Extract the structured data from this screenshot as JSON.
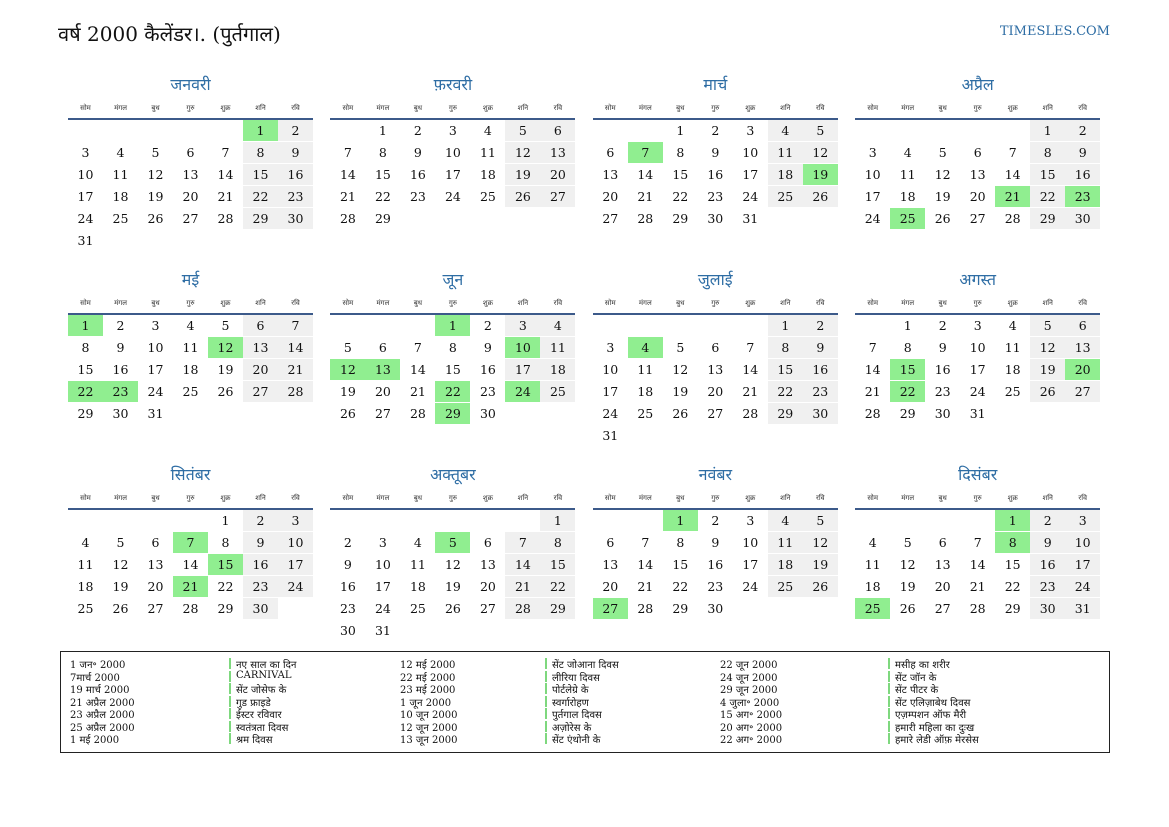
{
  "header": {
    "title": "वर्ष 2000 कैलेंडर।. (पुर्तगाल)",
    "site": "TIMESLES.COM"
  },
  "weekdays": [
    "सोम",
    "मंगल",
    "बुध",
    "गुरु",
    "शुक्र",
    "शनि",
    "रवि"
  ],
  "months": [
    {
      "name": "जनवरी",
      "weeks": [
        [
          null,
          null,
          null,
          null,
          null,
          1,
          2
        ],
        [
          3,
          4,
          5,
          6,
          7,
          8,
          9
        ],
        [
          10,
          11,
          12,
          13,
          14,
          15,
          16
        ],
        [
          17,
          18,
          19,
          20,
          21,
          22,
          23
        ],
        [
          24,
          25,
          26,
          27,
          28,
          29,
          30
        ],
        [
          31
        ]
      ],
      "holidays": [
        1
      ]
    },
    {
      "name": "फ़रवरी",
      "weeks": [
        [
          null,
          1,
          2,
          3,
          4,
          5,
          6
        ],
        [
          7,
          8,
          9,
          10,
          11,
          12,
          13
        ],
        [
          14,
          15,
          16,
          17,
          18,
          19,
          20
        ],
        [
          21,
          22,
          23,
          24,
          25,
          26,
          27
        ],
        [
          28,
          29
        ]
      ],
      "holidays": []
    },
    {
      "name": "मार्च",
      "weeks": [
        [
          null,
          null,
          1,
          2,
          3,
          4,
          5
        ],
        [
          6,
          7,
          8,
          9,
          10,
          11,
          12
        ],
        [
          13,
          14,
          15,
          16,
          17,
          18,
          19
        ],
        [
          20,
          21,
          22,
          23,
          24,
          25,
          26
        ],
        [
          27,
          28,
          29,
          30,
          31
        ]
      ],
      "holidays": [
        7,
        19
      ]
    },
    {
      "name": "अप्रैल",
      "weeks": [
        [
          null,
          null,
          null,
          null,
          null,
          1,
          2
        ],
        [
          3,
          4,
          5,
          6,
          7,
          8,
          9
        ],
        [
          10,
          11,
          12,
          13,
          14,
          15,
          16
        ],
        [
          17,
          18,
          19,
          20,
          21,
          22,
          23
        ],
        [
          24,
          25,
          26,
          27,
          28,
          29,
          30
        ]
      ],
      "holidays": [
        21,
        23,
        25
      ]
    },
    {
      "name": "मई",
      "weeks": [
        [
          1,
          2,
          3,
          4,
          5,
          6,
          7
        ],
        [
          8,
          9,
          10,
          11,
          12,
          13,
          14
        ],
        [
          15,
          16,
          17,
          18,
          19,
          20,
          21
        ],
        [
          22,
          23,
          24,
          25,
          26,
          27,
          28
        ],
        [
          29,
          30,
          31
        ]
      ],
      "holidays": [
        1,
        12,
        22,
        23
      ]
    },
    {
      "name": "जून",
      "weeks": [
        [
          null,
          null,
          null,
          1,
          2,
          3,
          4
        ],
        [
          5,
          6,
          7,
          8,
          9,
          10,
          11
        ],
        [
          12,
          13,
          14,
          15,
          16,
          17,
          18
        ],
        [
          19,
          20,
          21,
          22,
          23,
          24,
          25
        ],
        [
          26,
          27,
          28,
          29,
          30
        ]
      ],
      "holidays": [
        1,
        10,
        12,
        13,
        22,
        24,
        29
      ]
    },
    {
      "name": "जुलाई",
      "weeks": [
        [
          null,
          null,
          null,
          null,
          null,
          1,
          2
        ],
        [
          3,
          4,
          5,
          6,
          7,
          8,
          9
        ],
        [
          10,
          11,
          12,
          13,
          14,
          15,
          16
        ],
        [
          17,
          18,
          19,
          20,
          21,
          22,
          23
        ],
        [
          24,
          25,
          26,
          27,
          28,
          29,
          30
        ],
        [
          31
        ]
      ],
      "holidays": [
        4
      ]
    },
    {
      "name": "अगस्त",
      "weeks": [
        [
          null,
          1,
          2,
          3,
          4,
          5,
          6
        ],
        [
          7,
          8,
          9,
          10,
          11,
          12,
          13
        ],
        [
          14,
          15,
          16,
          17,
          18,
          19,
          20
        ],
        [
          21,
          22,
          23,
          24,
          25,
          26,
          27
        ],
        [
          28,
          29,
          30,
          31
        ]
      ],
      "holidays": [
        15,
        20,
        22
      ]
    },
    {
      "name": "सितंबर",
      "weeks": [
        [
          null,
          null,
          null,
          null,
          1,
          2,
          3
        ],
        [
          4,
          5,
          6,
          7,
          8,
          9,
          10
        ],
        [
          11,
          12,
          13,
          14,
          15,
          16,
          17
        ],
        [
          18,
          19,
          20,
          21,
          22,
          23,
          24
        ],
        [
          25,
          26,
          27,
          28,
          29,
          30
        ]
      ],
      "holidays": [
        7,
        15,
        21
      ]
    },
    {
      "name": "अक्तूबर",
      "weeks": [
        [
          null,
          null,
          null,
          null,
          null,
          null,
          1
        ],
        [
          2,
          3,
          4,
          5,
          6,
          7,
          8
        ],
        [
          9,
          10,
          11,
          12,
          13,
          14,
          15
        ],
        [
          16,
          17,
          18,
          19,
          20,
          21,
          22
        ],
        [
          23,
          24,
          25,
          26,
          27,
          28,
          29
        ],
        [
          30,
          31
        ]
      ],
      "holidays": [
        5
      ]
    },
    {
      "name": "नवंबर",
      "weeks": [
        [
          null,
          null,
          1,
          2,
          3,
          4,
          5
        ],
        [
          6,
          7,
          8,
          9,
          10,
          11,
          12
        ],
        [
          13,
          14,
          15,
          16,
          17,
          18,
          19
        ],
        [
          20,
          21,
          22,
          23,
          24,
          25,
          26
        ],
        [
          27,
          28,
          29,
          30
        ]
      ],
      "holidays": [
        1,
        27
      ]
    },
    {
      "name": "दिसंबर",
      "weeks": [
        [
          null,
          null,
          null,
          null,
          1,
          2,
          3
        ],
        [
          4,
          5,
          6,
          7,
          8,
          9,
          10
        ],
        [
          11,
          12,
          13,
          14,
          15,
          16,
          17
        ],
        [
          18,
          19,
          20,
          21,
          22,
          23,
          24
        ],
        [
          25,
          26,
          27,
          28,
          29,
          30,
          31
        ]
      ],
      "holidays": [
        1,
        8,
        25
      ]
    }
  ],
  "legend": [
    {
      "date": "1 जन॰ 2000",
      "name": "नए साल का दिन"
    },
    {
      "date": "7मार्च 2000",
      "name": "CARNIVAL"
    },
    {
      "date": "19 मार्च 2000",
      "name": "सेंट जोसेफ के"
    },
    {
      "date": "21 अप्रैल 2000",
      "name": "गुड फ्राइडे"
    },
    {
      "date": "23 अप्रैल 2000",
      "name": "ईस्टर रविवार"
    },
    {
      "date": "25 अप्रैल 2000",
      "name": "स्वतंत्रता दिवस"
    },
    {
      "date": "1 मई 2000",
      "name": "श्रम दिवस"
    },
    {
      "date": "12 मई 2000",
      "name": "सेंट जोआना दिवस"
    },
    {
      "date": "22 मई 2000",
      "name": "लीरिया दिवस"
    },
    {
      "date": "23 मई 2000",
      "name": "पोर्टलेग्रे के"
    },
    {
      "date": "1 जून 2000",
      "name": "स्वर्गारोहण"
    },
    {
      "date": "10 जून 2000",
      "name": "पुर्तगाल दिवस"
    },
    {
      "date": "12 जून 2000",
      "name": "अज़ोरेस के"
    },
    {
      "date": "13 जून 2000",
      "name": "सेंट एंथोनी के"
    },
    {
      "date": "22 जून 2000",
      "name": "मसीह का शरीर"
    },
    {
      "date": "24 जून 2000",
      "name": "सेंट जॉन के"
    },
    {
      "date": "29 जून 2000",
      "name": "सेंट पीटर के"
    },
    {
      "date": "4 जुला॰ 2000",
      "name": "सेंट एलिज़ाबेथ दिवस"
    },
    {
      "date": "15 अग॰ 2000",
      "name": "एज़म्पशन ऑफ मैरी"
    },
    {
      "date": "20 अग॰ 2000",
      "name": "हमारी महिला का दुःख"
    },
    {
      "date": "22 अग॰ 2000",
      "name": "हमारे लेडी ऑफ़ मेरसेस"
    }
  ]
}
